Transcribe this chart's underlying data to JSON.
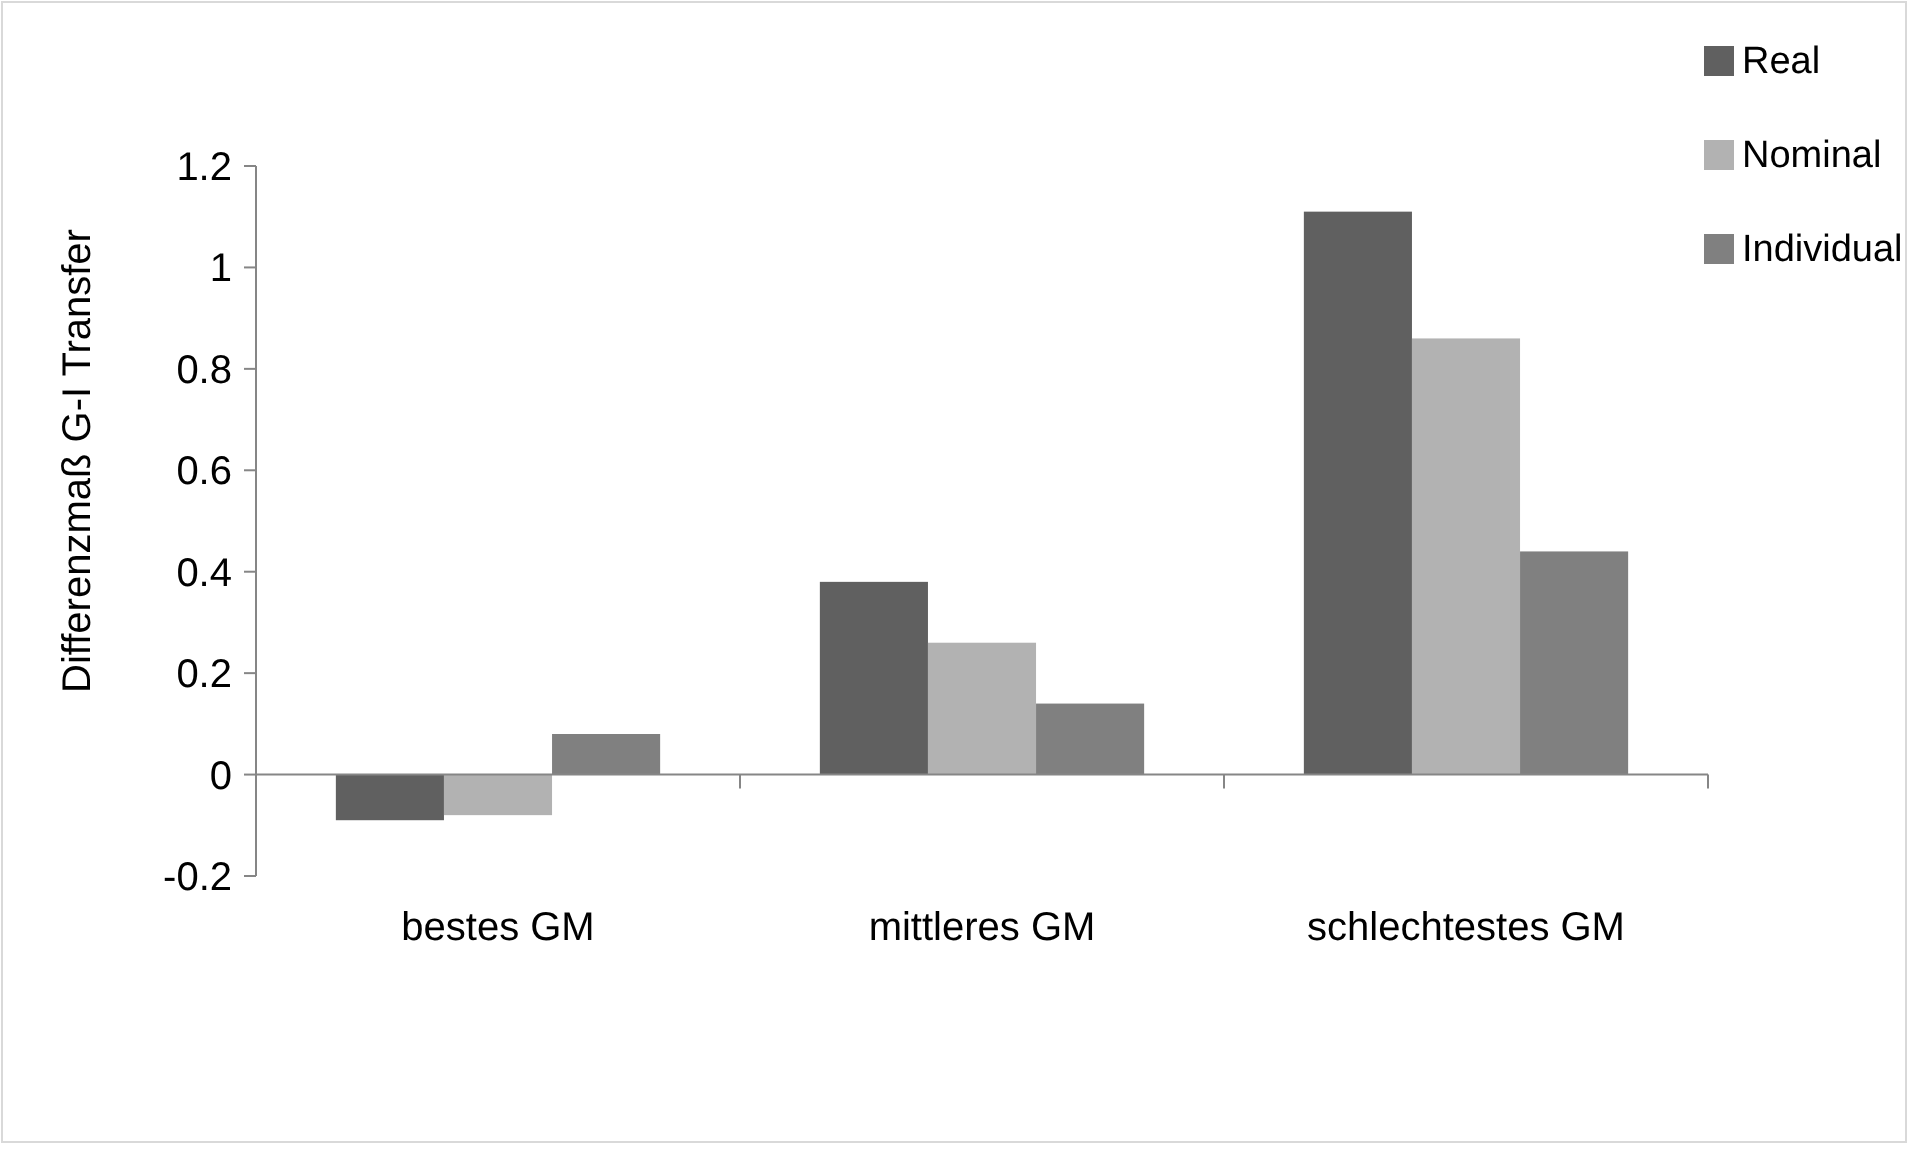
{
  "chart_data": {
    "type": "bar",
    "ylabel": "Differenzmaß G-I Transfer",
    "categories": [
      "bestes GM",
      "mittleres GM",
      "schlechtestes GM"
    ],
    "series": [
      {
        "name": "Real",
        "color": "#606060",
        "values": [
          -0.09,
          0.38,
          1.11
        ]
      },
      {
        "name": "Nominal",
        "color": "#b2b2b2",
        "values": [
          -0.08,
          0.26,
          0.86
        ]
      },
      {
        "name": "Individual",
        "color": "#808080",
        "values": [
          0.08,
          0.14,
          0.44
        ]
      }
    ],
    "ylim": [
      -0.2,
      1.2
    ],
    "yticks": [
      {
        "value": -0.2,
        "label": "-0.2"
      },
      0,
      {
        "value": 0.2,
        "label": "0.2"
      },
      {
        "value": 0.4,
        "label": "0.4"
      },
      {
        "value": 0.6,
        "label": "0.6"
      },
      {
        "value": 0.8,
        "label": "0.8"
      },
      1,
      {
        "value": 1.2,
        "label": "1.2"
      }
    ],
    "legend": "top right"
  }
}
